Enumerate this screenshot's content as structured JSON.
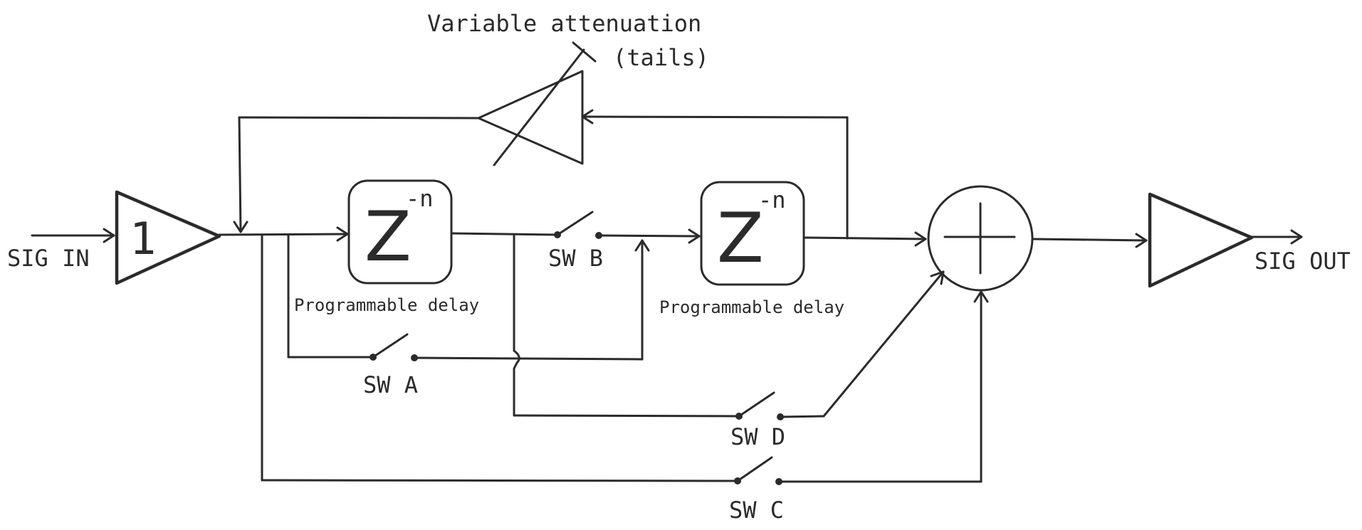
{
  "colors": {
    "ink": "#2b2b2b",
    "background": "#ffffff"
  },
  "labels": {
    "input": "SIG IN",
    "output": "SIG OUT",
    "attenuation_line1": "Variable attenuation",
    "attenuation_line2": "(tails)",
    "unity_gain": "1"
  },
  "delays": [
    {
      "symbol": "Z",
      "exponent": "-n",
      "caption": "Programmable delay"
    },
    {
      "symbol": "Z",
      "exponent": "-n",
      "caption": "Programmable delay"
    }
  ],
  "switches": {
    "a": "SW A",
    "b": "SW B",
    "c": "SW C",
    "d": "SW D"
  },
  "icons": {
    "summing_junction": "plus-circle-icon",
    "amplifier": "triangle-amplifier-icon",
    "arrowhead": "arrow-icon"
  }
}
